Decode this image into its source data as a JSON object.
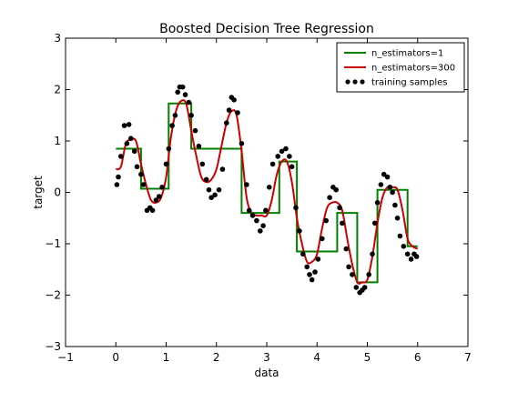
{
  "chart_data": {
    "type": "line",
    "title": "Boosted Decision Tree Regression",
    "xlabel": "data",
    "ylabel": "target",
    "xlim": [
      -1,
      7
    ],
    "ylim": [
      -3,
      3
    ],
    "xticks": [
      "−1",
      "0",
      "1",
      "2",
      "3",
      "4",
      "5",
      "6",
      "7"
    ],
    "yticks": [
      "−3",
      "−2",
      "−1",
      "0",
      "1",
      "2",
      "3"
    ],
    "grid": false,
    "legend_position": "top-right",
    "colors": {
      "step": "#008000",
      "smooth": "#cc0000",
      "samples": "#000000"
    },
    "series": [
      {
        "name": "n_estimators=1",
        "style": "step",
        "x": [
          0.0,
          0.5,
          0.5,
          1.05,
          1.05,
          1.5,
          1.5,
          2.5,
          2.5,
          2.75,
          2.75,
          3.25,
          3.25,
          3.6,
          3.6,
          4.1,
          4.1,
          4.4,
          4.4,
          4.8,
          4.8,
          5.2,
          5.2,
          5.8,
          5.8,
          6.0
        ],
        "y": [
          0.85,
          0.85,
          0.07,
          0.07,
          1.73,
          1.73,
          0.85,
          0.85,
          -0.4,
          -0.4,
          -0.4,
          -0.4,
          0.6,
          0.6,
          -1.15,
          -1.15,
          -1.15,
          -1.15,
          -0.4,
          -0.4,
          -1.75,
          -1.75,
          0.05,
          0.05,
          -1.05,
          -1.05
        ]
      },
      {
        "name": "n_estimators=300",
        "style": "smooth",
        "x": [
          0.0,
          0.1,
          0.2,
          0.3,
          0.4,
          0.5,
          0.6,
          0.7,
          0.8,
          0.9,
          1.0,
          1.1,
          1.2,
          1.3,
          1.4,
          1.5,
          1.6,
          1.7,
          1.8,
          1.9,
          2.0,
          2.1,
          2.2,
          2.3,
          2.4,
          2.5,
          2.6,
          2.7,
          2.8,
          2.9,
          3.0,
          3.1,
          3.2,
          3.3,
          3.4,
          3.5,
          3.6,
          3.7,
          3.8,
          3.9,
          4.0,
          4.1,
          4.2,
          4.3,
          4.4,
          4.5,
          4.6,
          4.7,
          4.8,
          4.9,
          5.0,
          5.1,
          5.2,
          5.3,
          5.4,
          5.5,
          5.6,
          5.7,
          5.8,
          5.9,
          6.0
        ],
        "y": [
          0.45,
          0.5,
          0.95,
          1.02,
          1.0,
          0.55,
          0.15,
          -0.15,
          -0.2,
          -0.1,
          0.3,
          1.1,
          1.6,
          1.78,
          1.72,
          1.2,
          0.7,
          0.3,
          0.2,
          0.25,
          0.45,
          0.9,
          1.35,
          1.58,
          1.5,
          0.8,
          -0.1,
          -0.4,
          -0.45,
          -0.45,
          -0.45,
          -0.15,
          0.35,
          0.6,
          0.6,
          0.2,
          -0.5,
          -1.0,
          -1.35,
          -1.35,
          -1.2,
          -0.7,
          -0.3,
          -0.2,
          -0.2,
          -0.35,
          -0.9,
          -1.4,
          -1.75,
          -1.75,
          -1.7,
          -1.25,
          -0.6,
          -0.1,
          0.1,
          0.1,
          0.05,
          -0.35,
          -0.9,
          -1.05,
          -1.1
        ]
      },
      {
        "name": "training samples",
        "style": "scatter",
        "x": [
          0.02,
          0.05,
          0.1,
          0.17,
          0.22,
          0.26,
          0.3,
          0.37,
          0.42,
          0.5,
          0.55,
          0.62,
          0.68,
          0.73,
          0.8,
          0.86,
          0.92,
          1.0,
          1.05,
          1.12,
          1.18,
          1.23,
          1.27,
          1.33,
          1.38,
          1.45,
          1.5,
          1.58,
          1.65,
          1.72,
          1.8,
          1.85,
          1.9,
          1.97,
          2.05,
          2.12,
          2.2,
          2.25,
          2.3,
          2.35,
          2.42,
          2.5,
          2.6,
          2.65,
          2.72,
          2.8,
          2.87,
          2.93,
          2.98,
          3.05,
          3.12,
          3.22,
          3.3,
          3.38,
          3.45,
          3.5,
          3.58,
          3.65,
          3.72,
          3.8,
          3.85,
          3.9,
          3.96,
          4.02,
          4.1,
          4.18,
          4.25,
          4.32,
          4.38,
          4.45,
          4.5,
          4.58,
          4.63,
          4.7,
          4.78,
          4.85,
          4.9,
          4.95,
          5.03,
          5.1,
          5.15,
          5.2,
          5.27,
          5.33,
          5.4,
          5.45,
          5.5,
          5.55,
          5.6,
          5.65,
          5.72,
          5.8,
          5.87,
          5.93,
          5.98
        ],
        "y": [
          0.15,
          0.3,
          0.7,
          1.3,
          0.95,
          1.32,
          1.05,
          0.8,
          0.5,
          0.35,
          0.15,
          -0.35,
          -0.3,
          -0.35,
          -0.15,
          -0.08,
          0.1,
          0.55,
          0.85,
          1.3,
          1.5,
          1.95,
          2.05,
          2.05,
          1.9,
          1.75,
          1.5,
          1.2,
          0.9,
          0.55,
          0.25,
          0.05,
          -0.1,
          -0.05,
          0.05,
          0.45,
          1.35,
          1.6,
          1.85,
          1.8,
          1.55,
          0.95,
          0.15,
          -0.35,
          -0.45,
          -0.55,
          -0.75,
          -0.65,
          -0.35,
          0.1,
          0.55,
          0.7,
          0.8,
          0.85,
          0.7,
          0.5,
          -0.3,
          -0.75,
          -1.2,
          -1.45,
          -1.6,
          -1.7,
          -1.55,
          -1.3,
          -0.9,
          -0.55,
          -0.1,
          0.1,
          0.05,
          -0.3,
          -0.6,
          -1.1,
          -1.45,
          -1.6,
          -1.85,
          -1.95,
          -1.9,
          -1.85,
          -1.6,
          -1.2,
          -0.6,
          -0.2,
          0.15,
          0.35,
          0.3,
          0.1,
          0.0,
          -0.25,
          -0.5,
          -0.85,
          -1.05,
          -1.2,
          -1.3,
          -1.2,
          -1.25
        ]
      }
    ]
  }
}
